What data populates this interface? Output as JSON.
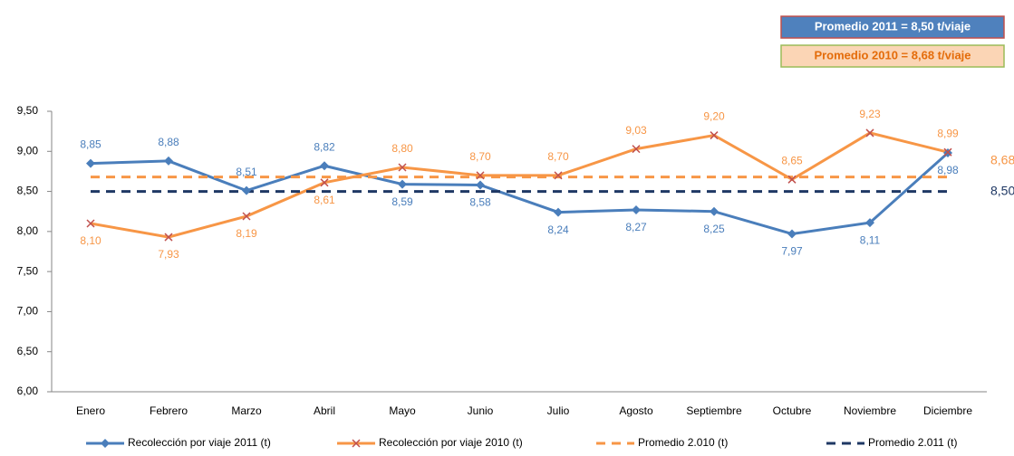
{
  "chart_data": {
    "type": "line",
    "categories": [
      "Enero",
      "Febrero",
      "Marzo",
      "Abril",
      "Mayo",
      "Junio",
      "Julio",
      "Agosto",
      "Septiembre",
      "Octubre",
      "Noviembre",
      "Diciembre"
    ],
    "series": [
      {
        "name": "Recolección por viaje 2011 (t)",
        "color": "#4a7ebb",
        "marker": "diamond",
        "dash": false,
        "values": [
          8.85,
          8.88,
          8.51,
          8.82,
          8.59,
          8.58,
          8.24,
          8.27,
          8.25,
          7.97,
          8.11,
          8.98
        ],
        "value_labels": [
          "8,85",
          "8,88",
          "8,51",
          "8,82",
          "8,59",
          "8,58",
          "8,24",
          "8,27",
          "8,25",
          "7,97",
          "8,11",
          "8,98"
        ]
      },
      {
        "name": "Recolección por viaje 2010 (t)",
        "color": "#f79646",
        "marker": "x",
        "dash": false,
        "values": [
          8.1,
          7.93,
          8.19,
          8.61,
          8.8,
          8.7,
          8.7,
          9.03,
          9.2,
          8.65,
          9.23,
          8.99
        ],
        "value_labels": [
          "8,10",
          "7,93",
          "8,19",
          "8,61",
          "8,80",
          "8,70",
          "8,70",
          "9,03",
          "9,20",
          "8,65",
          "9,23",
          "8,99"
        ]
      },
      {
        "name": "Promedio 2.010 (t)",
        "color": "#f79646",
        "marker": "none",
        "dash": true,
        "values": [
          8.68,
          8.68,
          8.68,
          8.68,
          8.68,
          8.68,
          8.68,
          8.68,
          8.68,
          8.68,
          8.68,
          8.68
        ],
        "value_labels": [
          null,
          null,
          null,
          null,
          null,
          null,
          null,
          null,
          null,
          null,
          null,
          "8,68"
        ]
      },
      {
        "name": "Promedio 2.011 (t)",
        "color": "#1f3864",
        "marker": "none",
        "dash": true,
        "values": [
          8.5,
          8.5,
          8.5,
          8.5,
          8.5,
          8.5,
          8.5,
          8.5,
          8.5,
          8.5,
          8.5,
          8.5
        ],
        "value_labels": [
          null,
          null,
          null,
          null,
          null,
          null,
          null,
          null,
          null,
          null,
          null,
          "8,50"
        ]
      }
    ],
    "ylim": [
      6.0,
      9.5
    ],
    "yticks": [
      {
        "value": 6.0,
        "label": "6,00"
      },
      {
        "value": 6.5,
        "label": "6,50"
      },
      {
        "value": 7.0,
        "label": "7,00"
      },
      {
        "value": 7.5,
        "label": "7,50"
      },
      {
        "value": 8.0,
        "label": "8,00"
      },
      {
        "value": 8.5,
        "label": "8,50"
      },
      {
        "value": 9.0,
        "label": "9,00"
      },
      {
        "value": 9.5,
        "label": "9,50"
      }
    ],
    "grid": false,
    "legend": "bottom",
    "annotations": [
      {
        "text": "Promedio 2011 = 8,50 t/viaje",
        "fill": "#4f81bd",
        "border": "#c0504d",
        "text_color": "#ffffff"
      },
      {
        "text": "Promedio 2010 = 8,68 t/viaje",
        "fill": "#fbd5b5",
        "border": "#9bbb59",
        "text_color": "#e46c0a"
      }
    ]
  }
}
